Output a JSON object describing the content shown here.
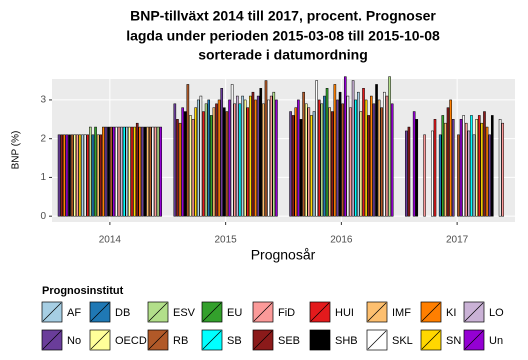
{
  "chart_data": {
    "type": "bar",
    "title": [
      "BNP-tillväxt 2014 till 2017, procent. Prognoser",
      "lagda under perioden 2015-03-08 till 2015-10-08",
      "sorterade i datumordning"
    ],
    "x_label": "Prognosår",
    "y_label": "BNP (%)",
    "ylim": [
      -0.15,
      3.54
    ],
    "yticks": [
      0,
      1,
      2,
      3
    ],
    "grid": true,
    "legend_title": "Prognosinstitut",
    "legend": [
      {
        "name": "AF",
        "color": "#a6cee3"
      },
      {
        "name": "DB",
        "color": "#1f78b4"
      },
      {
        "name": "ESV",
        "color": "#b2df8a"
      },
      {
        "name": "EU",
        "color": "#33a02c"
      },
      {
        "name": "FiD",
        "color": "#fb9a99"
      },
      {
        "name": "HUI",
        "color": "#e31a1c"
      },
      {
        "name": "IMF",
        "color": "#fdbf6f"
      },
      {
        "name": "KI",
        "color": "#ff7f00"
      },
      {
        "name": "LO",
        "color": "#cab2d6"
      },
      {
        "name": "No",
        "color": "#6a3d9a"
      },
      {
        "name": "OECD",
        "color": "#ffff99"
      },
      {
        "name": "RB",
        "color": "#b15928"
      },
      {
        "name": "SB",
        "color": "#00ffff"
      },
      {
        "name": "SEB",
        "color": "#8b1a1a"
      },
      {
        "name": "SHB",
        "color": "#000000"
      },
      {
        "name": "SKL",
        "color": "#ffffff"
      },
      {
        "name": "SN",
        "color": "#ffd700"
      },
      {
        "name": "Un",
        "color": "#9400d3"
      }
    ],
    "institutes": [
      "No",
      "SEB",
      "KI",
      "Un",
      "SHB",
      "RB",
      "OECD",
      "FiD",
      "SN",
      "AF",
      "SKL",
      "HUI",
      "ESV",
      "DB",
      "EU",
      "IMF",
      "SEB",
      "KI",
      "No",
      "SHB",
      "RB",
      "Un",
      "SKL",
      "FiD",
      "LO",
      "SB",
      "AF",
      "OECD",
      "HUI",
      "SN",
      "SEB",
      "KI",
      "No",
      "SHB",
      "IMF",
      "RB",
      "SKL",
      "FiD",
      "ESV",
      "Un"
    ],
    "categories": [
      "2014",
      "2015",
      "2016",
      "2017"
    ],
    "groups": [
      {
        "values": [
          2.1,
          2.1,
          2.1,
          2.1,
          2.1,
          2.1,
          2.1,
          2.1,
          2.1,
          2.1,
          2.1,
          2.1,
          2.3,
          2.1,
          2.3,
          2.1,
          2.1,
          2.3,
          2.3,
          2.3,
          2.3,
          2.3,
          2.3,
          2.3,
          2.3,
          2.3,
          2.3,
          2.3,
          2.3,
          2.3,
          2.4,
          2.3,
          2.3,
          2.3,
          2.3,
          2.3,
          2.3,
          2.3,
          2.3,
          2.3
        ]
      },
      {
        "values": [
          2.9,
          2.5,
          2.4,
          2.8,
          2.7,
          3.4,
          2.6,
          2.5,
          2.8,
          3.0,
          3.1,
          2.7,
          2.9,
          3.0,
          2.6,
          2.8,
          2.9,
          3.0,
          3.3,
          2.8,
          2.7,
          3.0,
          3.4,
          2.9,
          3.1,
          2.9,
          3.1,
          3.0,
          2.8,
          3.1,
          3.2,
          3.0,
          3.1,
          3.3,
          2.9,
          3.5,
          3.0,
          3.1,
          3.2,
          3.0
        ]
      },
      {
        "values": [
          2.7,
          2.6,
          2.8,
          3.0,
          2.5,
          3.2,
          2.9,
          2.8,
          2.6,
          2.7,
          3.5,
          3.0,
          2.9,
          3.1,
          3.3,
          2.8,
          2.7,
          3.4,
          3.0,
          3.2,
          2.9,
          3.6,
          3.1,
          2.8,
          3.5,
          3.0,
          3.2,
          2.7,
          3.3,
          3.0,
          2.6,
          3.1,
          2.9,
          3.4,
          3.0,
          2.8,
          3.2,
          3.1,
          3.6,
          2.9
        ]
      },
      {
        "values": [
          2.2,
          2.3,
          null,
          2.7,
          2.5,
          null,
          null,
          2.1,
          null,
          null,
          2.2,
          2.5,
          null,
          2.1,
          2.6,
          2.4,
          2.8,
          3.0,
          2.5,
          null,
          2.1,
          2.5,
          2.6,
          2.4,
          2.2,
          2.6,
          2.1,
          2.5,
          2.6,
          2.4,
          2.7,
          2.3,
          2.1,
          2.6,
          null,
          null,
          2.5,
          2.4,
          null,
          null
        ]
      }
    ]
  }
}
